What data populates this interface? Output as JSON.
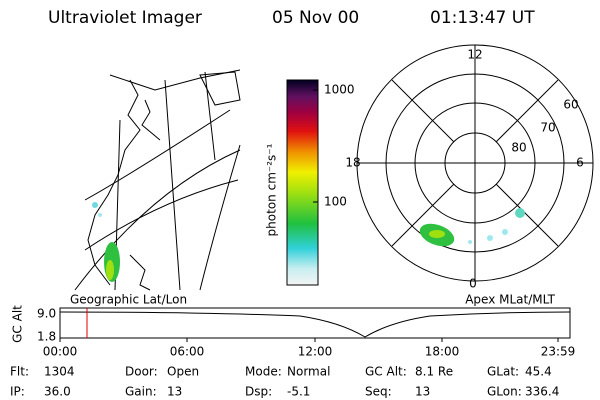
{
  "header": {
    "title": "Ultraviolet Imager",
    "date": "05 Nov 00",
    "time": "01:13:47 UT"
  },
  "colorbar": {
    "label": "photon cm⁻²s⁻¹",
    "ticks": [
      "1000",
      "100"
    ]
  },
  "polar": {
    "mlt_labels": [
      "12",
      "6",
      "0",
      "18"
    ],
    "lat_labels": [
      "60",
      "70",
      "80"
    ]
  },
  "panels": {
    "left": "Geographic Lat/Lon",
    "right": "Apex MLat/MLT"
  },
  "altitude": {
    "label": "GC Alt",
    "ticks": [
      "9.0",
      "1.8"
    ],
    "time_ticks": [
      "00:00",
      "06:00",
      "12:00",
      "18:00",
      "23:59"
    ]
  },
  "info": [
    [
      {
        "label": "Flt:",
        "value": "1304"
      },
      {
        "label": "Door:",
        "value": "Open"
      },
      {
        "label": "Mode:",
        "value": "Normal"
      },
      {
        "label": "GC Alt:",
        "value": "8.1 Re"
      },
      {
        "label": "GLat:",
        "value": "45.4"
      }
    ],
    [
      {
        "label": "IP:",
        "value": "36.0"
      },
      {
        "label": "Gain:",
        "value": "13"
      },
      {
        "label": "Dsp:",
        "value": "-5.1"
      },
      {
        "label": "Seq:",
        "value": "13"
      },
      {
        "label": "GLon:",
        "value": "336.4"
      }
    ]
  ]
}
